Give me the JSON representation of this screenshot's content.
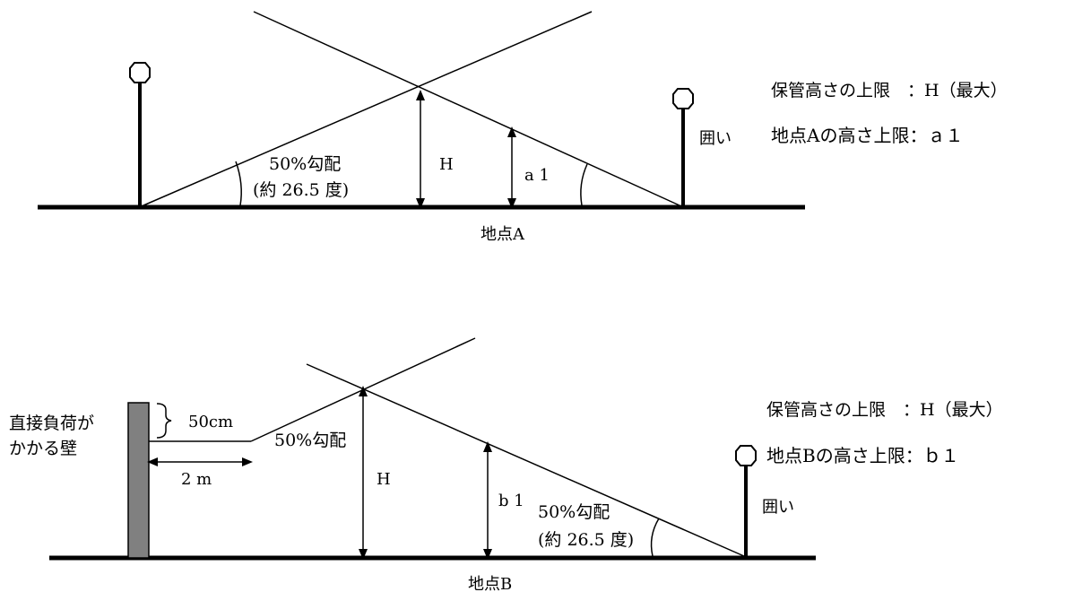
{
  "diagram_a": {
    "slope_label": "50%勾配",
    "angle_label": "(約 26.5 度)",
    "height_label": "H",
    "point_height_label": "a 1",
    "point_label": "地点A",
    "fence_label": "囲い",
    "legend_line1": "保管高さの上限　：H（最大）",
    "legend_line2": "地点Aの高さ上限：ａ１"
  },
  "diagram_b": {
    "wall_label_line1": "直接負荷が",
    "wall_label_line2": "かかる壁",
    "offset_label": "50cm",
    "distance_label": "2 m",
    "slope_label_upper": "50%勾配",
    "height_label": "H",
    "point_height_label": "b 1",
    "slope_label_lower": "50%勾配",
    "angle_label": "(約 26.5 度)",
    "point_label": "地点B",
    "fence_label": "囲い",
    "legend_line1": "保管高さの上限　：H（最大）",
    "legend_line2": "地点Bの高さ上限：ｂ１"
  }
}
